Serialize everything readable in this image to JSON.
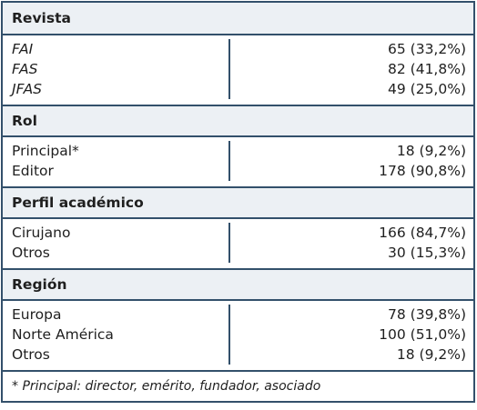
{
  "sections": [
    {
      "title": "Revista",
      "rows": [
        {
          "label": "FAI",
          "value": "65 (33,2%)"
        },
        {
          "label": "FAS",
          "value": "82 (41,8%)"
        },
        {
          "label": "JFAS",
          "value": "49 (25,0%)"
        }
      ]
    },
    {
      "title": "Rol",
      "rows": [
        {
          "label": "Principal*",
          "value": "18 (9,2%)"
        },
        {
          "label": "Editor",
          "value": "178 (90,8%)"
        }
      ]
    },
    {
      "title": "Perfil académico",
      "rows": [
        {
          "label": "Cirujano",
          "value": "166 (84,7%)"
        },
        {
          "label": "Otros",
          "value": "30 (15,3%)"
        }
      ]
    },
    {
      "title": "Región",
      "rows": [
        {
          "label": "Europa",
          "value": "78 (39,8%)"
        },
        {
          "label": "Norte América",
          "value": "100 (51,0%)"
        },
        {
          "label": "Otros",
          "value": "18 (9,2%)"
        }
      ]
    }
  ],
  "footnote": "* Principal: director, emérito, fundador, asociado",
  "colors": {
    "border": "#33506b",
    "header_bg": "#ecf0f4"
  }
}
